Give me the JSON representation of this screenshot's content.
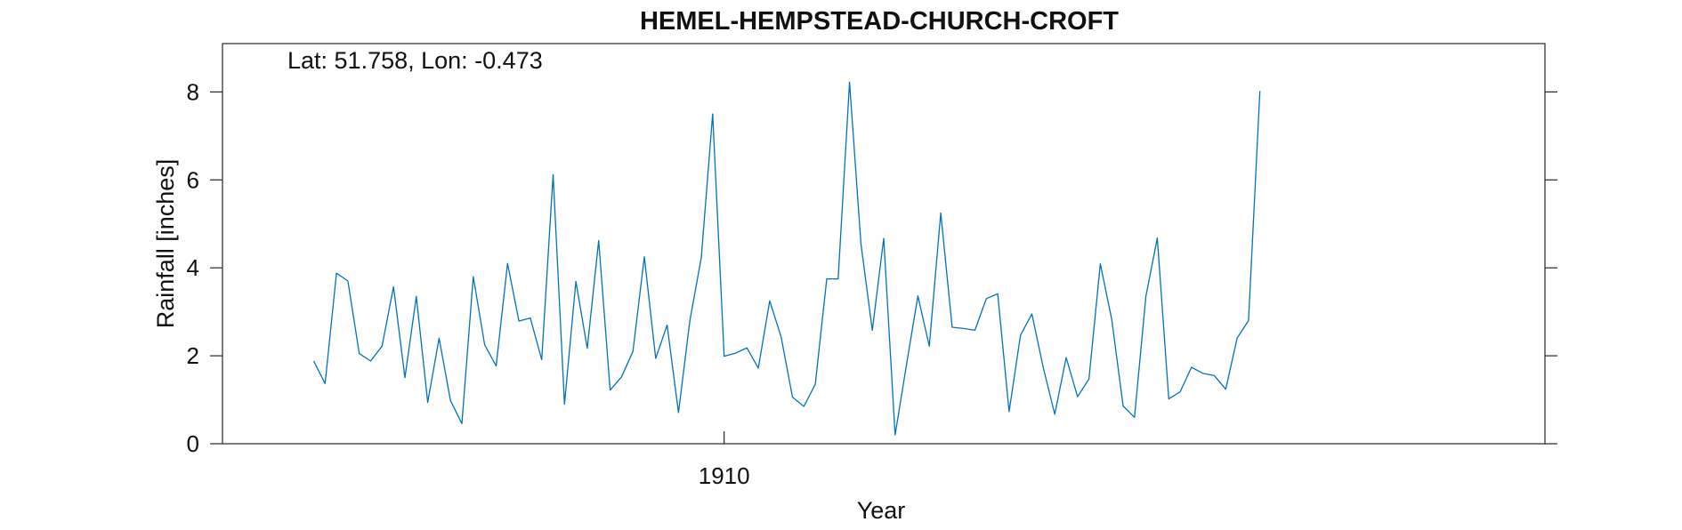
{
  "chart_data": {
    "type": "line",
    "title": "HEMEL-HEMPSTEAD-CHURCH-CROFT",
    "annotation": "Lat: 51.758, Lon: -0.473",
    "xlabel": "Year",
    "ylabel": "Rainfall [inches]",
    "xlim": [
      1906.3333,
      1916.0
    ],
    "ylim": [
      0,
      9.1
    ],
    "yticks": [
      0,
      2,
      4,
      6,
      8
    ],
    "xticks": [
      {
        "value": 1910,
        "label": "1910"
      }
    ],
    "grid": false,
    "line_color": "#0072bd",
    "series": [
      {
        "x_start": 1907.0,
        "x_step": 0.0833333,
        "values": [
          1.88,
          1.37,
          3.88,
          3.7,
          2.05,
          1.88,
          2.22,
          3.57,
          1.5,
          3.35,
          0.94,
          2.4,
          0.98,
          0.46,
          3.8,
          2.25,
          1.77,
          4.1,
          2.79,
          2.86,
          1.91,
          6.12,
          0.9,
          3.69,
          2.17,
          4.62,
          1.22,
          1.52,
          2.1,
          4.25,
          1.94,
          2.7,
          0.71,
          2.8,
          4.23,
          7.5,
          1.99,
          2.06,
          2.18,
          1.72,
          3.25,
          2.43,
          1.06,
          0.85,
          1.35,
          3.75,
          3.75,
          8.22,
          4.55,
          2.58,
          4.67,
          0.2,
          1.8,
          3.36,
          2.22,
          5.25,
          2.65,
          2.62,
          2.58,
          3.3,
          3.41,
          0.73,
          2.47,
          2.95,
          1.73,
          0.67,
          1.96,
          1.07,
          1.47,
          4.09,
          2.83,
          0.86,
          0.6,
          3.35,
          4.68,
          1.02,
          1.18,
          1.74,
          1.6,
          1.55,
          1.24,
          2.4,
          2.8,
          8.02
        ]
      }
    ]
  }
}
